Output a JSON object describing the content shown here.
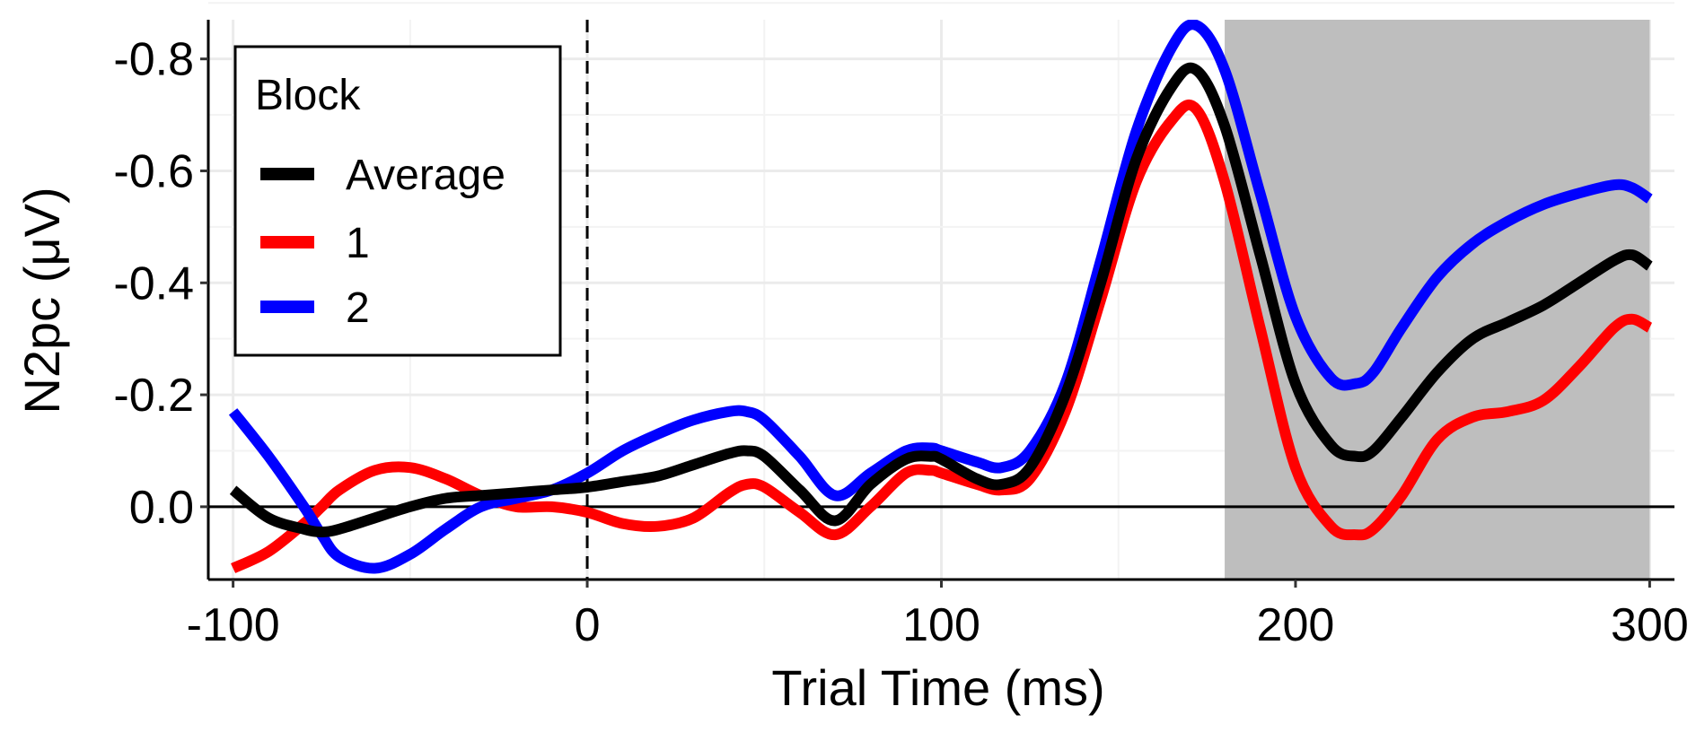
{
  "chart_data": {
    "type": "line",
    "title": "",
    "xlabel": "Trial Time (ms)",
    "ylabel": "N2pc (μV)",
    "xlim": [
      -107,
      307
    ],
    "ylim": [
      -0.87,
      0.13
    ],
    "y_axis_reversed": true,
    "x_ticks": [
      -100,
      0,
      100,
      200,
      300
    ],
    "x_tick_labels": [
      "-100",
      "0",
      "100",
      "200",
      "300"
    ],
    "y_ticks": [
      -0.8,
      -0.6,
      -0.4,
      -0.2,
      0.0
    ],
    "y_tick_labels": [
      "-0.8",
      "-0.6",
      "-0.4",
      "-0.2",
      "0.0"
    ],
    "grid": true,
    "reference_lines": {
      "vertical_dashed_x": 0,
      "horizontal_solid_y": 0
    },
    "shaded_region": {
      "x": [
        180,
        300
      ],
      "color": "#bebebe"
    },
    "legend": {
      "title": "Block",
      "placement": "top-left",
      "entries": [
        "Average",
        "1",
        "2"
      ]
    },
    "x": [
      -100,
      -90,
      -80,
      -75,
      -70,
      -60,
      -50,
      -40,
      -30,
      -20,
      -10,
      0,
      10,
      20,
      30,
      40,
      45,
      50,
      60,
      70,
      80,
      90,
      97,
      100,
      110,
      117,
      125,
      135,
      145,
      155,
      165,
      172,
      180,
      190,
      200,
      210,
      217,
      222,
      230,
      240,
      250,
      260,
      270,
      280,
      290,
      295,
      300
    ],
    "series": [
      {
        "name": "Average",
        "color": "#000000",
        "values": [
          -0.03,
          0.02,
          0.04,
          0.045,
          0.04,
          0.02,
          0.0,
          -0.015,
          -0.02,
          -0.025,
          -0.03,
          -0.035,
          -0.045,
          -0.055,
          -0.075,
          -0.095,
          -0.1,
          -0.09,
          -0.03,
          0.025,
          -0.04,
          -0.085,
          -0.09,
          -0.085,
          -0.05,
          -0.04,
          -0.07,
          -0.2,
          -0.4,
          -0.62,
          -0.75,
          -0.78,
          -0.68,
          -0.45,
          -0.22,
          -0.11,
          -0.09,
          -0.1,
          -0.16,
          -0.24,
          -0.3,
          -0.33,
          -0.36,
          -0.4,
          -0.44,
          -0.45,
          -0.43
        ]
      },
      {
        "name": "1",
        "color": "#ff0000",
        "values": [
          0.11,
          0.08,
          0.03,
          0.0,
          -0.03,
          -0.065,
          -0.07,
          -0.05,
          -0.02,
          0.0,
          0.0,
          0.01,
          0.03,
          0.035,
          0.02,
          -0.025,
          -0.04,
          -0.035,
          0.01,
          0.05,
          0.0,
          -0.06,
          -0.065,
          -0.06,
          -0.04,
          -0.03,
          -0.05,
          -0.17,
          -0.37,
          -0.58,
          -0.69,
          -0.71,
          -0.58,
          -0.32,
          -0.07,
          0.035,
          0.05,
          0.04,
          -0.02,
          -0.12,
          -0.16,
          -0.17,
          -0.19,
          -0.25,
          -0.32,
          -0.335,
          -0.32
        ]
      },
      {
        "name": "2",
        "color": "#0000ff",
        "values": [
          -0.17,
          -0.09,
          0.0,
          0.05,
          0.09,
          0.11,
          0.085,
          0.04,
          0.0,
          -0.015,
          -0.03,
          -0.06,
          -0.1,
          -0.13,
          -0.155,
          -0.17,
          -0.17,
          -0.155,
          -0.09,
          -0.02,
          -0.06,
          -0.1,
          -0.105,
          -0.1,
          -0.08,
          -0.07,
          -0.1,
          -0.22,
          -0.44,
          -0.67,
          -0.82,
          -0.86,
          -0.78,
          -0.56,
          -0.34,
          -0.23,
          -0.22,
          -0.24,
          -0.32,
          -0.41,
          -0.47,
          -0.51,
          -0.54,
          -0.56,
          -0.575,
          -0.57,
          -0.55
        ]
      }
    ]
  }
}
